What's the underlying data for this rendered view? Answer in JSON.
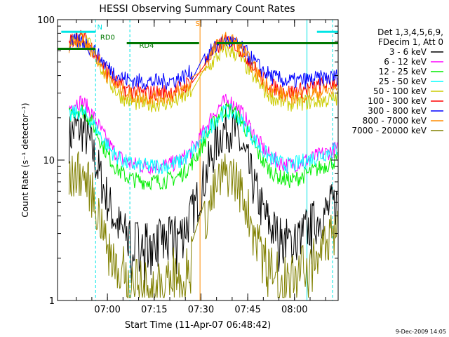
{
  "chart_data": {
    "type": "line",
    "title": "HESSI Observing Summary Count Rates",
    "xlabel": "Start Time (11-Apr-07 06:48:42)",
    "ylabel": "Count Rate (s⁻¹ detector⁻¹)",
    "yscale": "log",
    "ylim": [
      1,
      100
    ],
    "xlim_minutes": [
      -4.7,
      85.3
    ],
    "x_ticks": [
      {
        "label": "07:00",
        "minute": 11.3
      },
      {
        "label": "07:15",
        "minute": 26.3
      },
      {
        "label": "07:30",
        "minute": 41.3
      },
      {
        "label": "07:45",
        "minute": 56.3
      },
      {
        "label": "08:00",
        "minute": 71.3
      },
      {
        "label": "08:15",
        "minute": 86.3
      }
    ],
    "y_ticks": [
      {
        "label": "1",
        "value": 1
      },
      {
        "label": "10",
        "value": 10
      },
      {
        "label": "100",
        "value": 100
      }
    ],
    "legend_header": [
      "Det 1,3,4,5,6,9,",
      "FDecim 1, Att 0"
    ],
    "legend_position": "right",
    "footer": "9-Dec-2009 14:05",
    "annotations": [
      {
        "label": "N",
        "color": "#00e5e5"
      },
      {
        "label": "RD0",
        "color": "#007700"
      },
      {
        "label": "RD4",
        "color": "#007700"
      },
      {
        "label": "S",
        "color": "#ff8c00"
      }
    ],
    "series": [
      {
        "name": "3 - 6 keV",
        "color": "#000000"
      },
      {
        "name": "6 - 12 keV",
        "color": "#ff00ff"
      },
      {
        "name": "12 - 25 keV",
        "color": "#00ee00"
      },
      {
        "name": "25 - 50 keV",
        "color": "#00ffff"
      },
      {
        "name": "50 - 100 keV",
        "color": "#cccc00"
      },
      {
        "name": "100 - 300 keV",
        "color": "#ff0000"
      },
      {
        "name": "300 - 800 keV",
        "color": "#0000ff"
      },
      {
        "name": "800 - 7000 keV",
        "color": "#ff8c00"
      },
      {
        "name": "7000 - 20000 keV",
        "color": "#808000"
      }
    ],
    "series_levels": {
      "3 - 6 keV": {
        "peak_1": 17,
        "mid_min": 2.5,
        "peak_2": 17,
        "end": 6
      },
      "6 - 12 keV": {
        "peak_1": 26,
        "mid_min": 9,
        "peak_2": 26,
        "end": 13
      },
      "12 - 25 keV": {
        "peak_1": 23,
        "mid_min": 7,
        "peak_2": 23,
        "end": 11
      },
      "25 - 50 keV": {
        "peak_1": 22,
        "mid_min": 9,
        "peak_2": 22,
        "end": 13
      },
      "50 - 100 keV": {
        "peak_1": 75,
        "mid_min": 25,
        "peak_2": 60,
        "end": 28
      },
      "100 - 300 keV": {
        "peak_1": 75,
        "mid_min": 30,
        "peak_2": 70,
        "end": 38
      },
      "300 - 800 keV": {
        "peak_1": 70,
        "mid_min": 36,
        "peak_2": 70,
        "end": 40
      },
      "800 - 7000 keV": {
        "peak_1": 72,
        "mid_min": 28,
        "peak_2": 72,
        "end": 33
      },
      "7000 - 20000 keV": {
        "peak_1": 8,
        "mid_min": 1.3,
        "peak_2": 8,
        "end": 4
      }
    },
    "flag_bars": [
      {
        "name": "N",
        "color": "#00e5e5",
        "segments": [
          [
            -3.5,
            7.5
          ],
          [
            78.5,
            85.3
          ]
        ],
        "level": 82
      },
      {
        "name": "RD0",
        "color": "#007700",
        "segments": [
          [
            -4.7,
            7.5
          ]
        ],
        "level": 62
      },
      {
        "name": "RD4",
        "color": "#007700",
        "segments": [
          [
            17.5,
            40.7
          ],
          [
            46.3,
            85.3
          ]
        ],
        "level": 68
      }
    ],
    "vertical_markers": [
      {
        "minute": 7.5,
        "color": "#00e5e5",
        "style": "dashed"
      },
      {
        "minute": 18.5,
        "color": "#00e5e5",
        "style": "dashed"
      },
      {
        "minute": 41.0,
        "color": "#ff8c00",
        "style": "solid"
      },
      {
        "minute": 75.3,
        "color": "#00e5e5",
        "style": "solid"
      },
      {
        "minute": 83.5,
        "color": "#00e5e5",
        "style": "dashed"
      }
    ]
  }
}
